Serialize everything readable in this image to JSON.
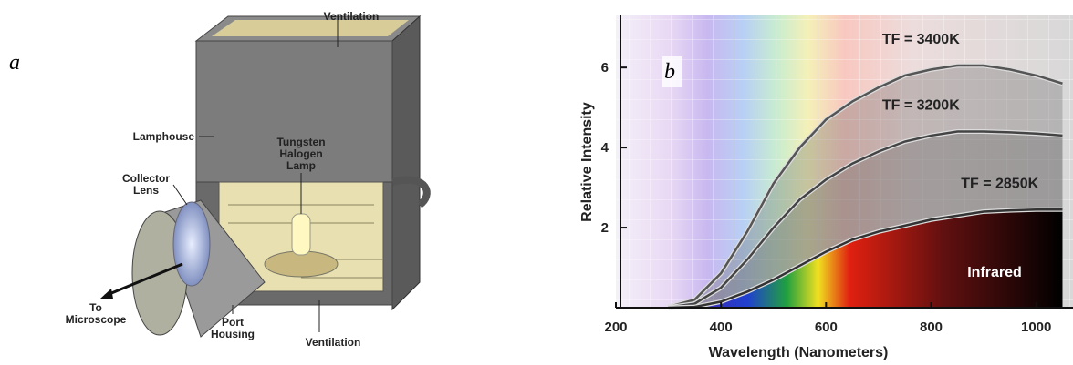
{
  "diagram": {
    "panel_label": "a",
    "ventilation_top": "Ventilation",
    "lamphouse": "Lamphouse",
    "lamp": [
      "Tungsten",
      "Halogen",
      "Lamp"
    ],
    "collector_lens": [
      "Collector",
      "Lens"
    ],
    "to_microscope": [
      "To",
      "Microscope"
    ],
    "port_housing": [
      "Port",
      "Housing"
    ],
    "ventilation_bottom": "Ventilation"
  },
  "chart_data": {
    "type": "line",
    "panel_label": "b",
    "xlabel": "Wavelength (Nanometers)",
    "ylabel": "Relative Intensity",
    "annotation": "Infrared",
    "x": [
      300,
      350,
      400,
      450,
      500,
      550,
      600,
      650,
      700,
      750,
      800,
      850,
      900,
      950,
      1000,
      1050
    ],
    "series": [
      {
        "name": "TF = 3400K",
        "color": "#555555",
        "values": [
          0.02,
          0.2,
          0.86,
          1.9,
          3.1,
          4.0,
          4.7,
          5.15,
          5.5,
          5.8,
          5.95,
          6.05,
          6.05,
          5.95,
          5.8,
          5.6
        ]
      },
      {
        "name": "TF = 3200K",
        "color": "#444444",
        "values": [
          0.01,
          0.1,
          0.5,
          1.2,
          2.0,
          2.7,
          3.2,
          3.6,
          3.9,
          4.15,
          4.3,
          4.4,
          4.4,
          4.38,
          4.35,
          4.3
        ]
      },
      {
        "name": "TF = 2850K",
        "color": "#333333",
        "values": [
          0,
          0.02,
          0.15,
          0.4,
          0.7,
          1.05,
          1.4,
          1.7,
          1.9,
          2.05,
          2.2,
          2.3,
          2.4,
          2.43,
          2.45,
          2.45
        ]
      }
    ],
    "xlim": [
      200,
      1070
    ],
    "ylim": [
      0,
      7.3
    ],
    "xticks": [
      200,
      400,
      600,
      800,
      1000
    ],
    "yticks": [
      2,
      4,
      6
    ]
  }
}
